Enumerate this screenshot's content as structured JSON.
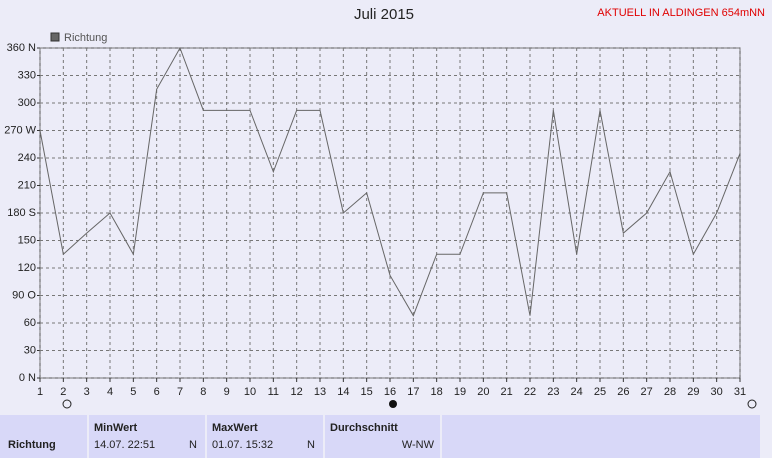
{
  "chart_data": {
    "type": "line",
    "title": "Juli 2015",
    "subtitle": "AKTUELL IN ALDINGEN 654mNN",
    "x": [
      1,
      2,
      3,
      4,
      5,
      6,
      7,
      8,
      9,
      10,
      11,
      12,
      13,
      14,
      15,
      16,
      17,
      18,
      19,
      20,
      21,
      22,
      23,
      24,
      25,
      26,
      27,
      28,
      29,
      30,
      31
    ],
    "xlim": [
      1,
      31
    ],
    "xticks": [
      1,
      2,
      3,
      4,
      5,
      6,
      7,
      8,
      9,
      10,
      11,
      12,
      13,
      14,
      15,
      16,
      17,
      18,
      19,
      20,
      21,
      22,
      23,
      24,
      25,
      26,
      27,
      28,
      29,
      30,
      31
    ],
    "ylim": [
      0,
      360
    ],
    "yticks": [
      {
        "value": 0,
        "label": "0 N"
      },
      30,
      60,
      {
        "value": 90,
        "label": "90 O"
      },
      120,
      150,
      {
        "value": 180,
        "label": "180 S"
      },
      210,
      240,
      {
        "value": 270,
        "label": "270 W"
      },
      300,
      330,
      {
        "value": 360,
        "label": "360 N"
      }
    ],
    "grid": true,
    "series": [
      {
        "name": "Richtung",
        "color": "#666666",
        "values": [
          270,
          135,
          158,
          180,
          135,
          315,
          360,
          292,
          292,
          292,
          225,
          292,
          292,
          180,
          202,
          112,
          68,
          135,
          135,
          202,
          202,
          68,
          292,
          135,
          292,
          158,
          180,
          225,
          135,
          180,
          245
        ]
      }
    ]
  },
  "summary": {
    "row_label": "Richtung",
    "min": {
      "header": "MinWert",
      "time": "14.07.  22:51",
      "dir": "N"
    },
    "max": {
      "header": "MaxWert",
      "time": "01.07.  15:32",
      "dir": "N"
    },
    "avg": {
      "header": "Durchschnitt",
      "value": "W-NW"
    }
  }
}
